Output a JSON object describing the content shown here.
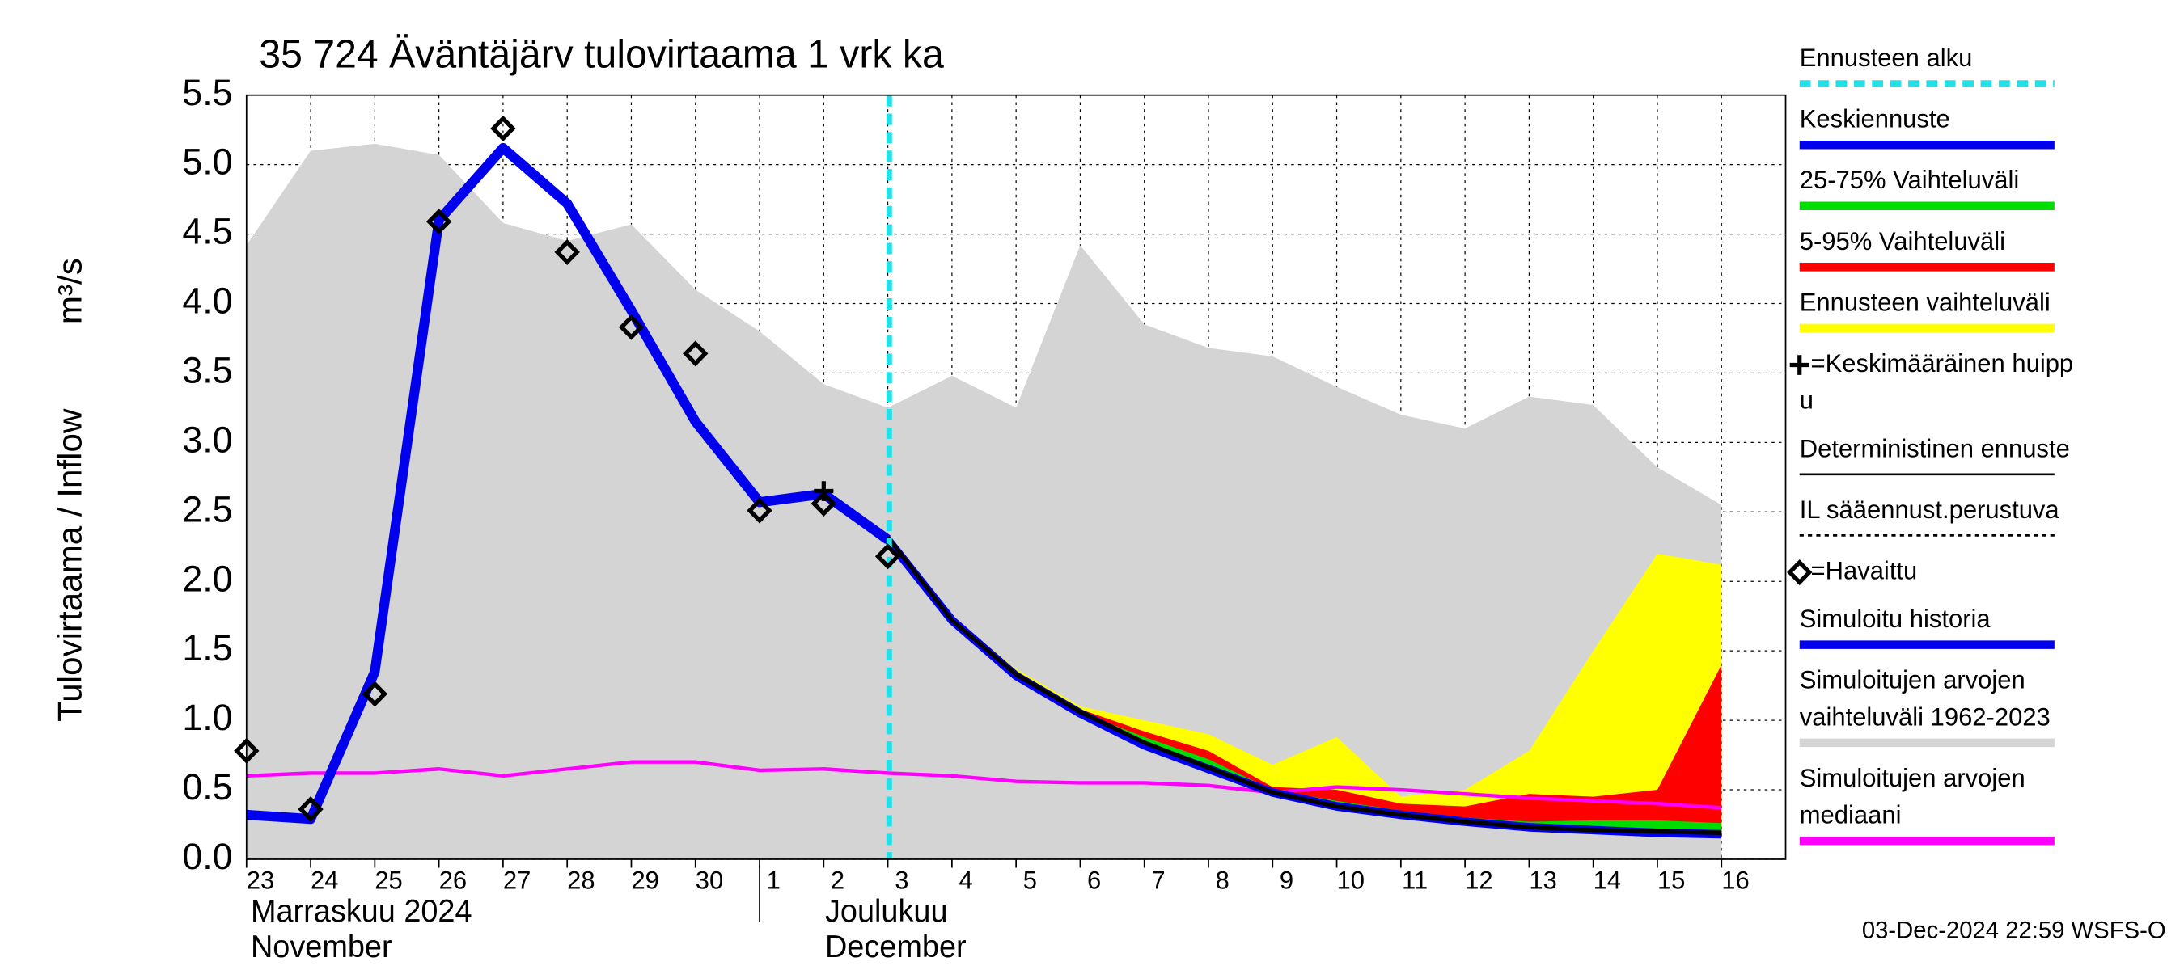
{
  "chart_data": {
    "type": "line",
    "title": "35 724 Äväntäjärv tulovirtaama 1 vrk ka",
    "ylabel": [
      "Tulovirtaama / Inflow",
      "m³/s"
    ],
    "footer": "03-Dec-2024 22:59 WSFS-O",
    "categories": [
      "23",
      "24",
      "25",
      "26",
      "27",
      "28",
      "29",
      "30",
      "1",
      "2",
      "3",
      "4",
      "5",
      "6",
      "7",
      "8",
      "9",
      "10",
      "11",
      "12",
      "13",
      "14",
      "15",
      "16"
    ],
    "months": [
      {
        "fi": "Marraskuu 2024",
        "en": "November",
        "start": "23"
      },
      {
        "fi": "Joulukuu",
        "en": "December",
        "start": "1"
      }
    ],
    "ylim": [
      0,
      5.5
    ],
    "yticks": [
      {
        "value": 0,
        "label": "0.0"
      },
      {
        "value": 0.5,
        "label": "0.5"
      },
      {
        "value": 1,
        "label": "1.0"
      },
      {
        "value": 1.5,
        "label": "1.5"
      },
      {
        "value": 2,
        "label": "2.0"
      },
      {
        "value": 2.5,
        "label": "2.5"
      },
      {
        "value": 3,
        "label": "3.0"
      },
      {
        "value": 3.5,
        "label": "3.5"
      },
      {
        "value": 4,
        "label": "4.0"
      },
      {
        "value": 4.5,
        "label": "4.5"
      },
      {
        "value": 5,
        "label": "5.0"
      },
      {
        "value": 5.5,
        "label": "5.5"
      }
    ],
    "grid": true,
    "forecast_start": "3",
    "forecast_color": "#22e0e8",
    "bands": [
      {
        "color": "#d4d4d4",
        "high": [
          4.42,
          5.1,
          5.15,
          5.07,
          4.58,
          4.45,
          4.57,
          4.1,
          3.8,
          3.42,
          3.25,
          3.48,
          3.25,
          4.42,
          3.85,
          3.68,
          3.62,
          3.4,
          3.2,
          3.1,
          3.33,
          3.27,
          2.82,
          2.55
        ],
        "low": [
          0,
          0,
          0,
          0,
          0,
          0,
          0,
          0,
          0,
          0,
          0,
          0,
          0,
          0,
          0,
          0,
          0,
          0,
          0,
          0,
          0,
          0,
          0,
          0
        ]
      },
      {
        "color": "#ffff00",
        "high": [
          null,
          null,
          null,
          null,
          null,
          null,
          null,
          null,
          null,
          null,
          2.3,
          1.75,
          1.37,
          1.1,
          1.0,
          0.9,
          0.68,
          0.88,
          0.45,
          0.5,
          0.78,
          1.5,
          2.2,
          2.12
        ],
        "low": [
          null,
          null,
          null,
          null,
          null,
          null,
          null,
          null,
          null,
          null,
          2.28,
          1.7,
          1.3,
          1.02,
          0.8,
          0.62,
          0.47,
          0.37,
          0.3,
          0.25,
          0.22,
          0.2,
          0.17,
          0.16
        ]
      },
      {
        "color": "#ff0000",
        "high": [
          null,
          null,
          null,
          null,
          null,
          null,
          null,
          null,
          null,
          null,
          2.3,
          1.73,
          1.35,
          1.08,
          0.92,
          0.78,
          0.52,
          0.5,
          0.4,
          0.38,
          0.47,
          0.45,
          0.5,
          1.4
        ],
        "low": [
          null,
          null,
          null,
          null,
          null,
          null,
          null,
          null,
          null,
          null,
          2.28,
          1.7,
          1.3,
          1.02,
          0.8,
          0.62,
          0.47,
          0.37,
          0.3,
          0.25,
          0.22,
          0.2,
          0.17,
          0.16
        ]
      },
      {
        "color": "#00dd00",
        "high": [
          null,
          null,
          null,
          null,
          null,
          null,
          null,
          null,
          null,
          null,
          2.3,
          1.72,
          1.33,
          1.06,
          0.88,
          0.72,
          0.5,
          0.42,
          0.35,
          0.3,
          0.27,
          0.28,
          0.28,
          0.26
        ],
        "low": [
          null,
          null,
          null,
          null,
          null,
          null,
          null,
          null,
          null,
          null,
          2.29,
          1.71,
          1.31,
          1.04,
          0.84,
          0.66,
          0.48,
          0.39,
          0.32,
          0.27,
          0.24,
          0.22,
          0.2,
          0.19
        ]
      }
    ],
    "series": [
      {
        "color": "#ff00ff",
        "width": 2.5,
        "values": [
          0.6,
          0.62,
          0.62,
          0.65,
          0.6,
          0.65,
          0.7,
          0.7,
          0.64,
          0.65,
          0.62,
          0.6,
          0.56,
          0.55,
          0.55,
          0.53,
          0.48,
          0.52,
          0.5,
          0.47,
          0.44,
          0.42,
          0.4,
          0.37
        ]
      },
      {
        "color": "#0000ee",
        "width": 7,
        "values": [
          0.32,
          0.29,
          1.35,
          4.6,
          5.12,
          4.72,
          3.95,
          3.15,
          2.57,
          2.63,
          2.3,
          null,
          null,
          null,
          null,
          null,
          null,
          null,
          null,
          null,
          null,
          null,
          null,
          null
        ]
      },
      {
        "color": "#0000ee",
        "width": 6,
        "values": [
          null,
          null,
          null,
          null,
          null,
          null,
          null,
          null,
          null,
          null,
          2.3,
          1.72,
          1.32,
          1.05,
          0.82,
          0.65,
          0.48,
          0.38,
          0.32,
          0.27,
          0.23,
          0.21,
          0.19,
          0.18
        ]
      },
      {
        "color": "#000000",
        "width": 3,
        "values": [
          null,
          null,
          null,
          null,
          null,
          null,
          null,
          null,
          null,
          null,
          2.32,
          1.72,
          1.33,
          1.06,
          0.84,
          0.66,
          0.48,
          0.38,
          0.32,
          0.27,
          0.23,
          0.21,
          0.2,
          0.19
        ]
      }
    ],
    "observed": {
      "values": [
        0.78,
        0.36,
        1.19,
        4.59,
        5.26,
        4.37,
        3.83,
        3.64,
        2.51,
        2.56,
        2.18,
        null,
        null,
        null,
        null,
        null,
        null,
        null,
        null,
        null,
        null,
        null,
        null,
        null
      ]
    },
    "peak": {
      "values": [
        null,
        null,
        null,
        null,
        null,
        null,
        null,
        null,
        null,
        2.65,
        null,
        null,
        null,
        null,
        null,
        null,
        null,
        null,
        null,
        null,
        null,
        null,
        null,
        null
      ]
    },
    "legend": [
      {
        "label": [
          "Ennusteen alku"
        ],
        "color": "#22e0e8",
        "style": "dash"
      },
      {
        "label": [
          "Keskiennuste"
        ],
        "color": "#0000ee",
        "style": "line"
      },
      {
        "label": [
          "25-75% Vaihteluväli"
        ],
        "color": "#00dd00",
        "style": "line"
      },
      {
        "label": [
          "5-95% Vaihteluväli"
        ],
        "color": "#ff0000",
        "style": "line"
      },
      {
        "label": [
          "Ennusteen vaihteluväli"
        ],
        "color": "#ffff00",
        "style": "line"
      },
      {
        "label": [
          "=Keskimääräinen huipp",
          "u"
        ],
        "color": "#000000",
        "style": "plus"
      },
      {
        "label": [
          "Deterministinen ennuste"
        ],
        "color": "#000000",
        "style": "thin"
      },
      {
        "label": [
          "IL sääennust.perustuva"
        ],
        "color": "#000000",
        "style": "dotted"
      },
      {
        "label": [
          "=Havaittu"
        ],
        "color": "#000000",
        "style": "diamond"
      },
      {
        "label": [
          "Simuloitu historia"
        ],
        "color": "#0000ee",
        "style": "line"
      },
      {
        "label": [
          "Simuloitujen arvojen",
          "vaihteluväli 1962-2023"
        ],
        "color": "#d4d4d4",
        "style": "line"
      },
      {
        "label": [
          "Simuloitujen arvojen",
          "mediaani"
        ],
        "color": "#ff00ff",
        "style": "line"
      }
    ]
  }
}
